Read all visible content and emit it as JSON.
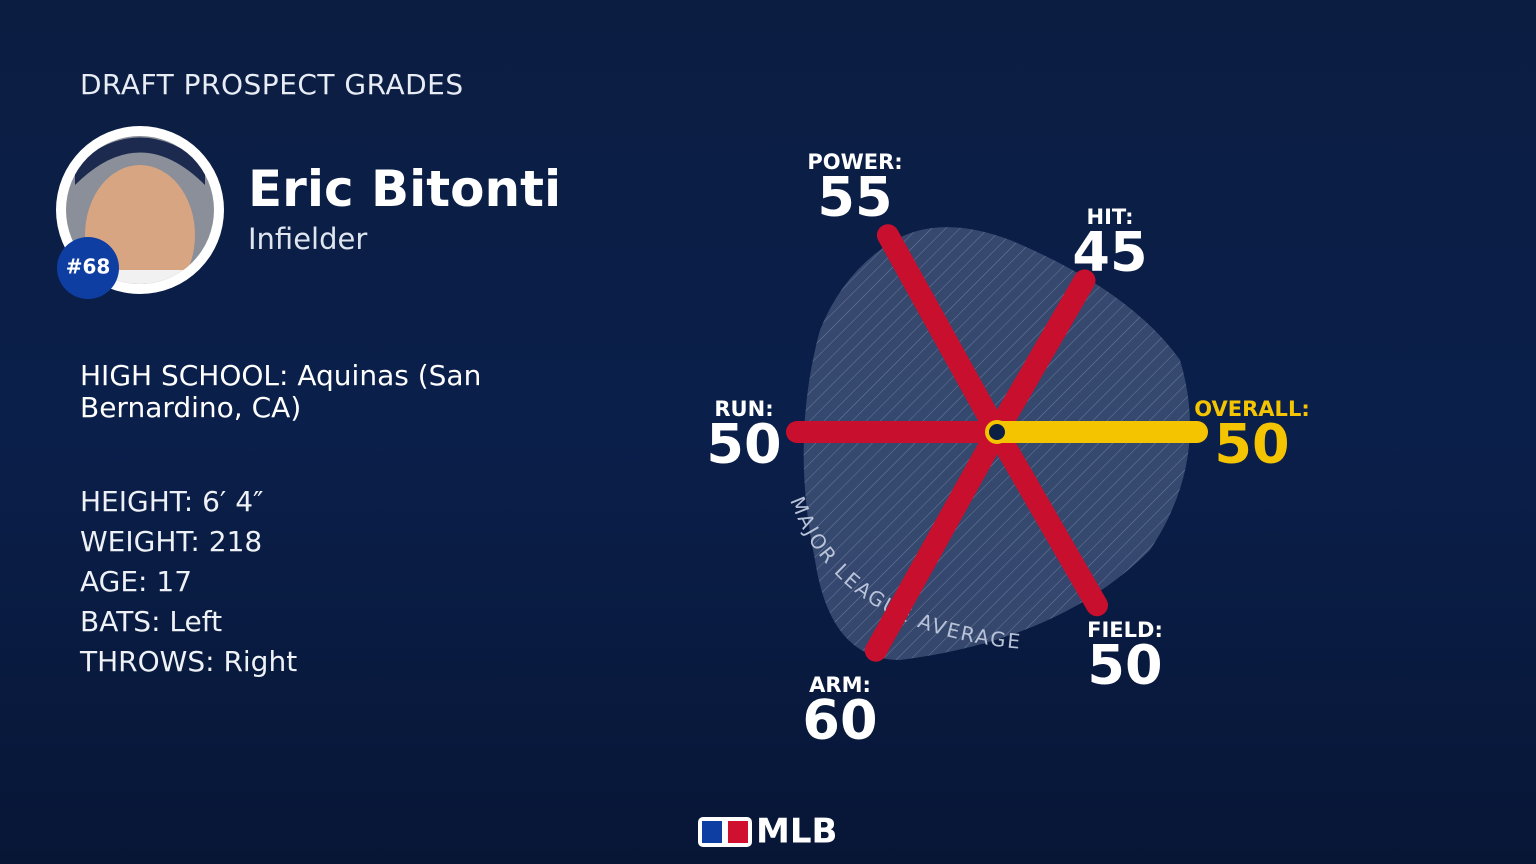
{
  "header": {
    "title": "DRAFT PROSPECT GRADES"
  },
  "player": {
    "name": "Eric Bitonti",
    "position": "Infielder",
    "rank": "#68"
  },
  "details": {
    "school": "HIGH SCHOOL: Aquinas (San Bernardino, CA)",
    "lines": [
      "HEIGHT: 6′ 4″",
      "WEIGHT: 218",
      "AGE: 17",
      "BATS: Left",
      "THROWS: Right"
    ]
  },
  "grades": [
    {
      "label": "POWER:",
      "value": 55
    },
    {
      "label": "HIT:",
      "value": 45
    },
    {
      "label": "RUN:",
      "value": 50
    },
    {
      "label": "OVERALL:",
      "value": 50
    },
    {
      "label": "FIELD:",
      "value": 50
    },
    {
      "label": "ARM:",
      "value": 60
    }
  ],
  "average_label": "MAJOR LEAGUE AVERAGE",
  "footer": {
    "logo": "MLB"
  }
}
